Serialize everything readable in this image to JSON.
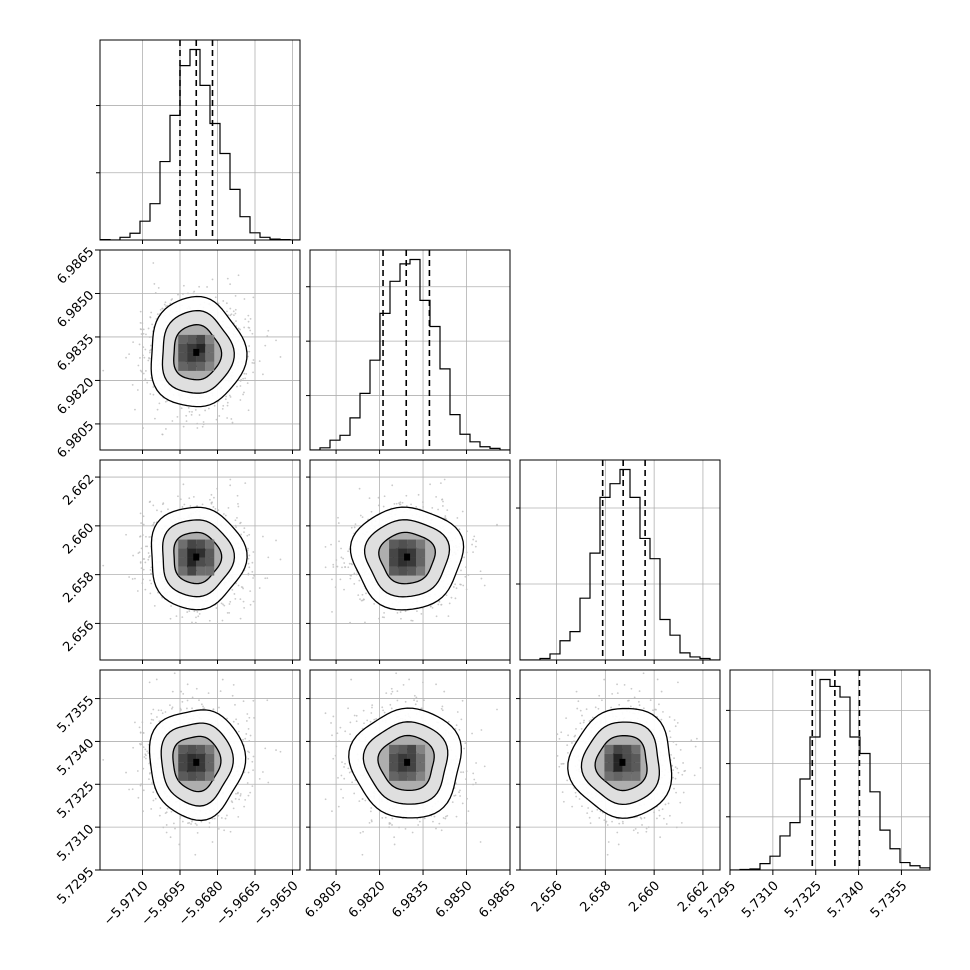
{
  "chart_data": {
    "type": "corner",
    "params": [
      {
        "name": "",
        "center": -5.96885,
        "sd": 0.00095,
        "q16": -5.9695,
        "q50": -5.96885,
        "q84": -5.9682
      },
      {
        "name": "",
        "center": 6.98295,
        "sd": 0.00095,
        "q16": 6.98212,
        "q50": 6.98292,
        "q84": 6.98372
      },
      {
        "name": "",
        "center": 2.6587,
        "sd": 0.00105,
        "q16": 2.65789,
        "q50": 2.65873,
        "q84": 2.65963
      },
      {
        "name": "",
        "center": 5.73325,
        "sd": 0.00096,
        "q16": 5.73238,
        "q50": 5.73317,
        "q84": 5.73403
      }
    ],
    "ranges": [
      [
        -5.9727,
        -5.9647
      ],
      [
        6.9796,
        6.9865
      ],
      [
        2.6545,
        2.6627
      ],
      [
        5.7295,
        5.7365
      ]
    ],
    "ticks": [
      [
        "−5.9710",
        "−5.9695",
        "−5.9680",
        "−5.9665",
        "−5.9650"
      ],
      [
        "6.9805",
        "6.9820",
        "6.9835",
        "6.9850",
        "6.9865"
      ],
      [
        "2.656",
        "2.658",
        "2.660",
        "2.662"
      ],
      [
        "5.7295",
        "5.7310",
        "5.7325",
        "5.7340",
        "5.7355"
      ]
    ],
    "tick_values": [
      [
        -5.971,
        -5.9695,
        -5.968,
        -5.9665,
        -5.965
      ],
      [
        6.9805,
        6.982,
        6.9835,
        6.985,
        6.9865
      ],
      [
        2.656,
        2.658,
        2.66,
        2.662
      ],
      [
        5.7295,
        5.731,
        5.7325,
        5.734,
        5.7355
      ]
    ],
    "grid": true,
    "line_color": "#000000",
    "point_color": "#bdbdbd"
  }
}
